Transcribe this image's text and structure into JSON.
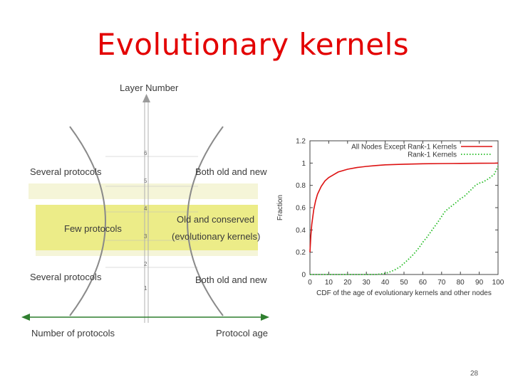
{
  "slide": {
    "title": "Evolutionary kernels",
    "page_number": "28"
  },
  "hourglass": {
    "y_axis_label": "Layer Number",
    "x_axis_left_label": "Number of protocols",
    "x_axis_right_label": "Protocol age",
    "layer_ticks": [
      "6",
      "5",
      "4",
      "3",
      "2",
      "1"
    ],
    "labels": {
      "top_left": "Several protocols",
      "top_right": "Both old and new",
      "middle_left": "Few protocols",
      "middle_right_line1": "Old and conserved",
      "middle_right_line2": "(evolutionary kernels)",
      "bottom_left": "Several protocols",
      "bottom_right": "Both old and new"
    },
    "colors": {
      "highlight": "#ecec88",
      "band": "#f3f3cf",
      "curve": "#8a8a8a"
    }
  },
  "chart_data": {
    "type": "line",
    "title": "",
    "xlabel": "CDF of the age of evolutionary kernels and other nodes",
    "ylabel": "Fraction",
    "xlim": [
      0,
      100
    ],
    "ylim": [
      0,
      1.2
    ],
    "x_ticks": [
      "0",
      "10",
      "20",
      "30",
      "40",
      "50",
      "60",
      "70",
      "80",
      "90",
      "100"
    ],
    "y_ticks": [
      "0",
      "0.2",
      "0.4",
      "0.6",
      "0.8",
      "1",
      "1.2"
    ],
    "legend_position": "top-right",
    "series": [
      {
        "name": "All Nodes Except Rank-1 Kernels",
        "color": "#dd1111",
        "style": "solid",
        "x": [
          0,
          0.5,
          1,
          2,
          3,
          4,
          6,
          8,
          10,
          12,
          15,
          20,
          25,
          30,
          35,
          40,
          50,
          60,
          70,
          80,
          90,
          98,
          100
        ],
        "y": [
          0.2,
          0.35,
          0.45,
          0.58,
          0.66,
          0.72,
          0.79,
          0.84,
          0.87,
          0.89,
          0.92,
          0.945,
          0.96,
          0.97,
          0.978,
          0.984,
          0.99,
          0.994,
          0.996,
          0.997,
          0.998,
          0.999,
          1.0
        ]
      },
      {
        "name": "Rank-1 Kernels",
        "color": "#22bb22",
        "style": "dotted",
        "x": [
          0,
          35,
          38,
          40,
          42,
          45,
          48,
          50,
          52,
          55,
          58,
          60,
          62,
          65,
          68,
          70,
          72,
          75,
          78,
          80,
          82,
          85,
          88,
          90,
          92,
          95,
          98,
          100
        ],
        "y": [
          0,
          0,
          0.005,
          0.01,
          0.02,
          0.04,
          0.07,
          0.1,
          0.13,
          0.18,
          0.24,
          0.29,
          0.33,
          0.4,
          0.47,
          0.52,
          0.57,
          0.61,
          0.65,
          0.68,
          0.7,
          0.75,
          0.8,
          0.82,
          0.83,
          0.86,
          0.9,
          0.97
        ]
      }
    ]
  }
}
